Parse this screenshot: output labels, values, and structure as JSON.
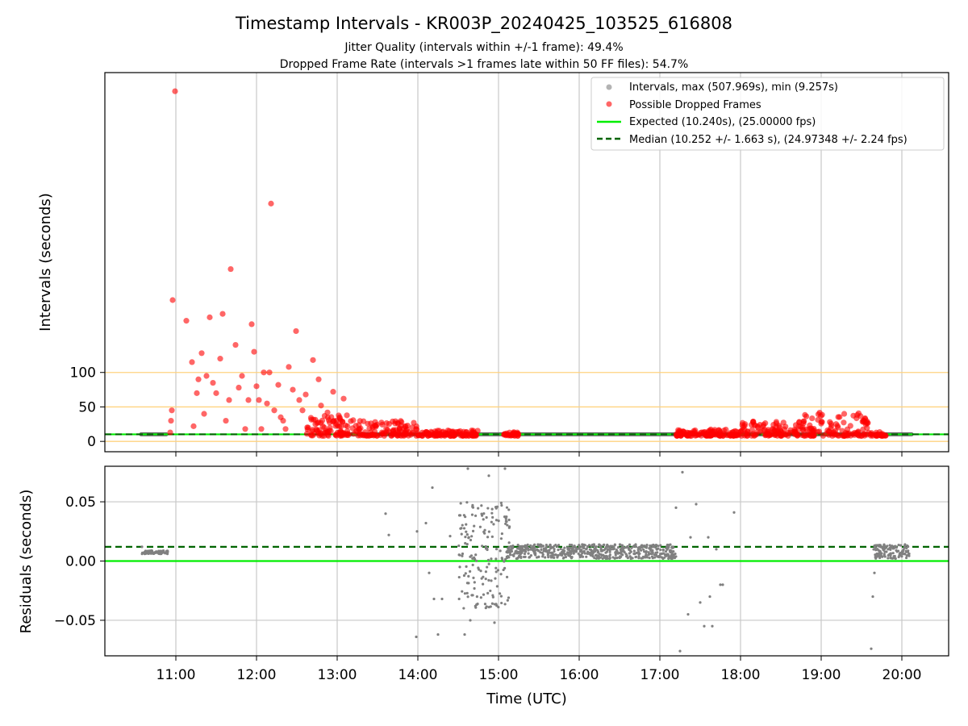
{
  "chart_data": [
    {
      "type": "scatter",
      "title": "Timestamp Intervals - KR003P_20240425_103525_616808",
      "subtitle_lines": [
        "Jitter Quality (intervals within +/-1 frame): 49.4%",
        "Dropped Frame Rate (intervals >1 frames late within 50 FF files): 54.7%"
      ],
      "xlabel": "",
      "ylabel": "Intervals (seconds)",
      "x_ticks": [
        "11:00",
        "12:00",
        "13:00",
        "14:00",
        "15:00",
        "16:00",
        "17:00",
        "18:00",
        "19:00",
        "20:00"
      ],
      "y_ticks": [
        "0",
        "50",
        "100"
      ],
      "xlim_hours": [
        10.12,
        20.58
      ],
      "ylim": [
        -15,
        535
      ],
      "grid": "vertical",
      "reference_lines_y": [
        0,
        50,
        100
      ],
      "legend_position": "top-right",
      "legend": [
        "Intervals, max (507.969s), min (9.257s)",
        "Possible Dropped Frames",
        "Expected (10.240s), (25.00000 fps)",
        "Median (10.252 +/- 1.663 s), (24.97348 +/- 2.24 fps)"
      ],
      "expected_interval": 10.24,
      "median_interval": 10.252,
      "colors": {
        "intervals": "#808080",
        "dropped": "#ff0000",
        "expected": "#00ee00",
        "median": "#006400",
        "reference": "#ffd27f",
        "grid": "#c8c8c8"
      },
      "series": [
        {
          "name": "Intervals, max (507.969s), min (9.257s)",
          "segments": [
            {
              "x_start": 10.57,
              "x_end": 10.88,
              "y": 10.25
            },
            {
              "x_start": 13.05,
              "x_end": 20.12,
              "y": 10.25
            }
          ]
        },
        {
          "name": "Possible Dropped Frames",
          "points": [
            [
              10.93,
              13
            ],
            [
              10.94,
              30
            ],
            [
              10.95,
              45
            ],
            [
              10.96,
              205
            ],
            [
              10.99,
              507.969
            ],
            [
              11.13,
              175
            ],
            [
              11.2,
              115
            ],
            [
              11.22,
              22
            ],
            [
              11.26,
              70
            ],
            [
              11.28,
              90
            ],
            [
              11.32,
              128
            ],
            [
              11.35,
              40
            ],
            [
              11.38,
              95
            ],
            [
              11.42,
              180
            ],
            [
              11.46,
              85
            ],
            [
              11.5,
              70
            ],
            [
              11.55,
              120
            ],
            [
              11.58,
              185
            ],
            [
              11.62,
              30
            ],
            [
              11.66,
              60
            ],
            [
              11.68,
              250
            ],
            [
              11.74,
              140
            ],
            [
              11.78,
              78
            ],
            [
              11.82,
              95
            ],
            [
              11.86,
              18
            ],
            [
              11.9,
              60
            ],
            [
              11.94,
              170
            ],
            [
              11.97,
              130
            ],
            [
              12.0,
              80
            ],
            [
              12.03,
              60
            ],
            [
              12.06,
              18
            ],
            [
              12.09,
              100
            ],
            [
              12.13,
              55
            ],
            [
              12.16,
              100
            ],
            [
              12.18,
              345
            ],
            [
              12.22,
              45
            ],
            [
              12.27,
              82
            ],
            [
              12.3,
              35
            ],
            [
              12.33,
              30
            ],
            [
              12.36,
              18
            ],
            [
              12.4,
              108
            ],
            [
              12.45,
              75
            ],
            [
              12.49,
              160
            ],
            [
              12.53,
              60
            ],
            [
              12.57,
              45
            ],
            [
              12.61,
              68
            ],
            [
              12.64,
              20
            ],
            [
              12.7,
              118
            ],
            [
              12.73,
              25
            ],
            [
              12.77,
              90
            ],
            [
              12.8,
              52
            ],
            [
              12.84,
              20
            ],
            [
              12.88,
              42
            ],
            [
              12.91,
              20
            ],
            [
              12.95,
              72
            ],
            [
              12.99,
              25
            ],
            [
              13.03,
              35
            ],
            [
              13.08,
              62
            ]
          ],
          "dense_bands": [
            {
              "x_start": 12.62,
              "x_end": 13.25,
              "y_min": 8,
              "y_max": 38
            },
            {
              "x_start": 13.25,
              "x_end": 14.0,
              "y_min": 8,
              "y_max": 30
            },
            {
              "x_start": 14.0,
              "x_end": 14.75,
              "y_min": 8,
              "y_max": 16
            },
            {
              "x_start": 15.05,
              "x_end": 15.25,
              "y_min": 8,
              "y_max": 14
            },
            {
              "x_start": 17.2,
              "x_end": 18.0,
              "y_min": 8,
              "y_max": 18
            },
            {
              "x_start": 18.0,
              "x_end": 18.75,
              "y_min": 8,
              "y_max": 30
            },
            {
              "x_start": 18.75,
              "x_end": 19.6,
              "y_min": 8,
              "y_max": 42
            },
            {
              "x_start": 19.6,
              "x_end": 19.8,
              "y_min": 8,
              "y_max": 14
            }
          ]
        }
      ]
    },
    {
      "type": "scatter",
      "title": "",
      "xlabel": "Time (UTC)",
      "ylabel": "Residuals (seconds)",
      "x_ticks": [
        "11:00",
        "12:00",
        "13:00",
        "14:00",
        "15:00",
        "16:00",
        "17:00",
        "18:00",
        "19:00",
        "20:00"
      ],
      "y_ticks": [
        "0.05",
        "0.00",
        "−0.05"
      ],
      "xlim_hours": [
        10.12,
        20.58
      ],
      "ylim": [
        -0.08,
        0.08
      ],
      "grid": "both",
      "expected_residual": 0.0,
      "median_residual": 0.012,
      "series": [
        {
          "name": "Residuals",
          "points": [
            [
              10.58,
              0.012
            ],
            [
              13.6,
              0.04
            ],
            [
              13.64,
              0.022
            ],
            [
              13.98,
              -0.064
            ],
            [
              13.99,
              0.025
            ],
            [
              14.1,
              0.032
            ],
            [
              14.14,
              -0.01
            ],
            [
              14.18,
              0.062
            ],
            [
              14.2,
              -0.032
            ],
            [
              14.25,
              -0.062
            ],
            [
              14.3,
              -0.032
            ],
            [
              14.4,
              0.021
            ],
            [
              14.52,
              -0.005
            ],
            [
              14.58,
              -0.062
            ],
            [
              14.62,
              0.078
            ],
            [
              14.65,
              -0.05
            ],
            [
              14.88,
              0.072
            ],
            [
              14.95,
              -0.052
            ],
            [
              15.08,
              0.078
            ],
            [
              17.2,
              0.045
            ],
            [
              17.25,
              -0.076
            ],
            [
              17.28,
              0.075
            ],
            [
              17.35,
              -0.045
            ],
            [
              17.38,
              0.02
            ],
            [
              17.45,
              0.048
            ],
            [
              17.5,
              -0.035
            ],
            [
              17.55,
              -0.055
            ],
            [
              17.6,
              0.02
            ],
            [
              17.62,
              -0.03
            ],
            [
              17.65,
              -0.055
            ],
            [
              17.7,
              0.01
            ],
            [
              17.75,
              -0.02
            ],
            [
              17.78,
              -0.02
            ],
            [
              17.92,
              0.041
            ],
            [
              19.62,
              -0.074
            ],
            [
              19.64,
              -0.03
            ],
            [
              19.66,
              -0.01
            ]
          ],
          "dense_bands": [
            {
              "x_start": 10.58,
              "x_end": 10.9,
              "y_min": 0.006,
              "y_max": 0.009
            },
            {
              "x_start": 14.5,
              "x_end": 15.15,
              "y_min": -0.04,
              "y_max": 0.05
            },
            {
              "x_start": 15.1,
              "x_end": 17.2,
              "y_min": 0.002,
              "y_max": 0.014
            },
            {
              "x_start": 19.65,
              "x_end": 20.1,
              "y_min": 0.002,
              "y_max": 0.014
            }
          ]
        }
      ]
    }
  ]
}
